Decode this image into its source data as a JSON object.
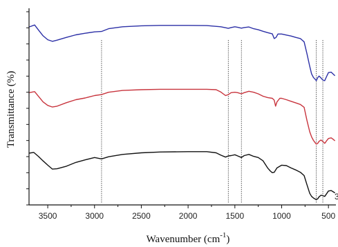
{
  "chart_data": {
    "type": "line",
    "xlabel": "Wavenumber (cm",
    "xlabel_sup": "-1",
    "xlabel_tail": ")",
    "ylabel": "Transmittance (%)",
    "xlim": [
      3700,
      420
    ],
    "x_reversed": true,
    "ylim": [
      0,
      100
    ],
    "x_ticks": [
      3500,
      3000,
      2500,
      2000,
      1500,
      1000,
      500
    ],
    "y_tick_count": 13,
    "grid": false,
    "legend": "none",
    "markers_cm1": [
      2925,
      1570,
      1430,
      630,
      560
    ],
    "right_edge_label": "3",
    "series": [
      {
        "color": "#2b2fa6",
        "points": [
          [
            3700,
            90.5
          ],
          [
            3640,
            91.5
          ],
          [
            3600,
            89
          ],
          [
            3550,
            86
          ],
          [
            3500,
            84
          ],
          [
            3450,
            83.2
          ],
          [
            3400,
            83.8
          ],
          [
            3300,
            85.2
          ],
          [
            3200,
            86.5
          ],
          [
            3100,
            87.3
          ],
          [
            3000,
            88
          ],
          [
            2925,
            88.2
          ],
          [
            2850,
            89.6
          ],
          [
            2700,
            90.6
          ],
          [
            2500,
            91.1
          ],
          [
            2300,
            91.3
          ],
          [
            2000,
            91.3
          ],
          [
            1800,
            91.2
          ],
          [
            1650,
            90.6
          ],
          [
            1600,
            90.1
          ],
          [
            1570,
            89.8
          ],
          [
            1540,
            90.2
          ],
          [
            1500,
            90.6
          ],
          [
            1470,
            90.3
          ],
          [
            1430,
            89.9
          ],
          [
            1400,
            90.2
          ],
          [
            1350,
            90.5
          ],
          [
            1300,
            89.6
          ],
          [
            1250,
            89.1
          ],
          [
            1200,
            88.3
          ],
          [
            1150,
            87.6
          ],
          [
            1100,
            87
          ],
          [
            1080,
            84.6
          ],
          [
            1060,
            85.2
          ],
          [
            1040,
            86.9
          ],
          [
            1000,
            86.9
          ],
          [
            950,
            86.4
          ],
          [
            900,
            85.9
          ],
          [
            850,
            85.2
          ],
          [
            800,
            84.6
          ],
          [
            760,
            82.9
          ],
          [
            730,
            77
          ],
          [
            700,
            70.5
          ],
          [
            680,
            66.6
          ],
          [
            660,
            64.8
          ],
          [
            640,
            63.8
          ],
          [
            630,
            63.2
          ],
          [
            615,
            64.7
          ],
          [
            600,
            65.5
          ],
          [
            580,
            64.6
          ],
          [
            560,
            63.5
          ],
          [
            540,
            63.2
          ],
          [
            520,
            65.3
          ],
          [
            500,
            67.3
          ],
          [
            470,
            67.5
          ],
          [
            450,
            66.6
          ],
          [
            430,
            65.7
          ]
        ]
      },
      {
        "color": "#c8343d",
        "points": [
          [
            3700,
            57.1
          ],
          [
            3640,
            57.6
          ],
          [
            3600,
            55.3
          ],
          [
            3550,
            52.4
          ],
          [
            3500,
            50.6
          ],
          [
            3450,
            49.8
          ],
          [
            3400,
            50.2
          ],
          [
            3300,
            52
          ],
          [
            3200,
            53.5
          ],
          [
            3100,
            54.4
          ],
          [
            3000,
            55.6
          ],
          [
            2925,
            56.1
          ],
          [
            2850,
            57.3
          ],
          [
            2700,
            58.2
          ],
          [
            2500,
            58.6
          ],
          [
            2300,
            58.8
          ],
          [
            2000,
            58.8
          ],
          [
            1800,
            58.8
          ],
          [
            1700,
            58.6
          ],
          [
            1650,
            57.4
          ],
          [
            1600,
            55.6
          ],
          [
            1570,
            56.1
          ],
          [
            1540,
            57.1
          ],
          [
            1500,
            57.3
          ],
          [
            1470,
            57.1
          ],
          [
            1430,
            56.5
          ],
          [
            1400,
            57.1
          ],
          [
            1350,
            57.8
          ],
          [
            1300,
            57.3
          ],
          [
            1250,
            56.5
          ],
          [
            1200,
            55.3
          ],
          [
            1150,
            54.6
          ],
          [
            1100,
            54.2
          ],
          [
            1080,
            53.3
          ],
          [
            1065,
            50.2
          ],
          [
            1050,
            52.4
          ],
          [
            1020,
            54.2
          ],
          [
            1000,
            54.2
          ],
          [
            950,
            53.5
          ],
          [
            900,
            52.7
          ],
          [
            850,
            51.9
          ],
          [
            800,
            51.1
          ],
          [
            760,
            49.6
          ],
          [
            730,
            43.1
          ],
          [
            700,
            37.2
          ],
          [
            680,
            34.6
          ],
          [
            660,
            32.8
          ],
          [
            640,
            31.5
          ],
          [
            630,
            30.9
          ],
          [
            615,
            31.3
          ],
          [
            600,
            32.3
          ],
          [
            580,
            33
          ],
          [
            560,
            32.3
          ],
          [
            540,
            31.3
          ],
          [
            520,
            32.6
          ],
          [
            500,
            33.8
          ],
          [
            470,
            34.1
          ],
          [
            450,
            33.4
          ],
          [
            430,
            32.6
          ]
        ]
      },
      {
        "color": "#111111",
        "points": [
          [
            3700,
            26.3
          ],
          [
            3650,
            26.7
          ],
          [
            3600,
            24.7
          ],
          [
            3550,
            22.4
          ],
          [
            3500,
            20.2
          ],
          [
            3450,
            18.2
          ],
          [
            3400,
            18.4
          ],
          [
            3300,
            19.7
          ],
          [
            3200,
            21.6
          ],
          [
            3100,
            22.9
          ],
          [
            3000,
            24.1
          ],
          [
            2925,
            23.4
          ],
          [
            2850,
            24.5
          ],
          [
            2700,
            25.7
          ],
          [
            2500,
            26.5
          ],
          [
            2300,
            26.9
          ],
          [
            2000,
            27.1
          ],
          [
            1800,
            27.1
          ],
          [
            1700,
            26.5
          ],
          [
            1650,
            25.3
          ],
          [
            1600,
            24.3
          ],
          [
            1570,
            24.9
          ],
          [
            1540,
            25.1
          ],
          [
            1500,
            25.5
          ],
          [
            1470,
            24.9
          ],
          [
            1430,
            24.1
          ],
          [
            1400,
            25.1
          ],
          [
            1350,
            25.7
          ],
          [
            1300,
            24.7
          ],
          [
            1250,
            24.1
          ],
          [
            1200,
            22.5
          ],
          [
            1150,
            18.8
          ],
          [
            1120,
            17.2
          ],
          [
            1100,
            16.4
          ],
          [
            1080,
            16.6
          ],
          [
            1050,
            18.8
          ],
          [
            1000,
            20.2
          ],
          [
            950,
            20
          ],
          [
            900,
            18.8
          ],
          [
            850,
            17.8
          ],
          [
            800,
            16.6
          ],
          [
            760,
            14.9
          ],
          [
            730,
            10.4
          ],
          [
            700,
            5.9
          ],
          [
            680,
            4.3
          ],
          [
            660,
            3.5
          ],
          [
            640,
            2.9
          ],
          [
            630,
            2.7
          ],
          [
            615,
            3.1
          ],
          [
            600,
            4.1
          ],
          [
            580,
            4.9
          ],
          [
            560,
            4.7
          ],
          [
            540,
            4.3
          ],
          [
            520,
            5.7
          ],
          [
            500,
            7.1
          ],
          [
            470,
            7.3
          ],
          [
            450,
            6.7
          ],
          [
            430,
            6.1
          ]
        ]
      }
    ]
  }
}
